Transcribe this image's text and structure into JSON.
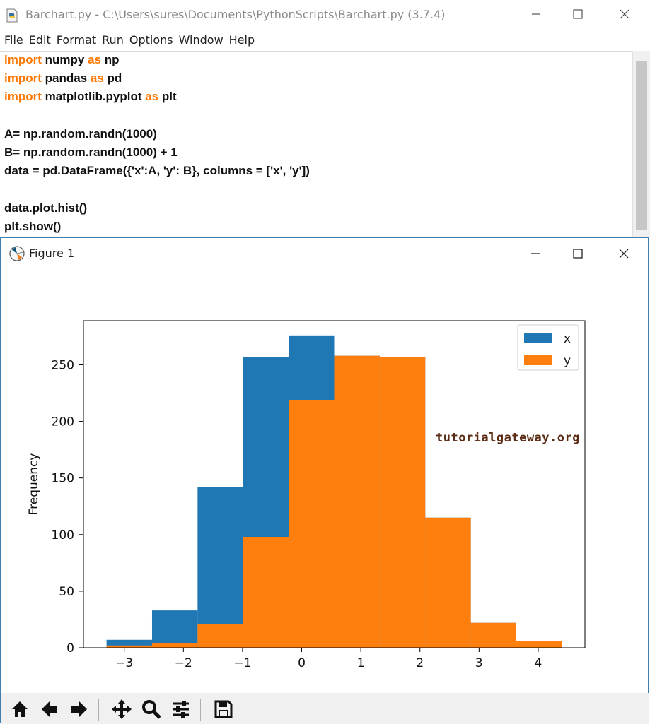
{
  "editor": {
    "title": "Barchart.py - C:\\Users\\sures\\Documents\\PythonScripts\\Barchart.py (3.7.4)",
    "menu": [
      "File",
      "Edit",
      "Format",
      "Run",
      "Options",
      "Window",
      "Help"
    ],
    "code_lines": [
      [
        {
          "t": "import",
          "kw": true
        },
        {
          "t": " numpy "
        },
        {
          "t": "as",
          "kw": true
        },
        {
          "t": " np"
        }
      ],
      [
        {
          "t": "import",
          "kw": true
        },
        {
          "t": " pandas "
        },
        {
          "t": "as",
          "kw": true
        },
        {
          "t": " pd"
        }
      ],
      [
        {
          "t": "import",
          "kw": true
        },
        {
          "t": " matplotlib.pyplot "
        },
        {
          "t": "as",
          "kw": true
        },
        {
          "t": " plt"
        }
      ],
      [],
      [
        {
          "t": "A= np.random.randn(1000)"
        }
      ],
      [
        {
          "t": "B= np.random.randn(1000) + 1"
        }
      ],
      [
        {
          "t": "data = pd.DataFrame({'x':A, 'y': B}, columns = ['x', 'y'])"
        }
      ],
      [],
      [
        {
          "t": "data.plot.hist()"
        }
      ],
      [
        {
          "t": "plt.show()"
        }
      ]
    ]
  },
  "figure": {
    "title": "Figure 1",
    "watermark": "tutorialgateway.org",
    "toolbar": [
      "home-icon",
      "back-icon",
      "forward-icon",
      "pan-icon",
      "zoom-icon",
      "configure-subplots-icon",
      "save-icon"
    ]
  },
  "colors": {
    "x": "#1f77b4",
    "y": "#ff7f0e",
    "keyword": "#ff7700"
  },
  "chart_data": {
    "type": "bar",
    "title": "",
    "xlabel": "",
    "ylabel": "Frequency",
    "xlim": [
      -3.69,
      4.79
    ],
    "ylim": [
      0,
      289
    ],
    "xticks": [
      -3,
      -2,
      -1,
      0,
      1,
      2,
      3,
      4
    ],
    "yticks": [
      0,
      50,
      100,
      150,
      200,
      250
    ],
    "bin_edges": [
      -3.3,
      -2.53,
      -1.76,
      -0.99,
      -0.22,
      0.55,
      1.32,
      2.09,
      2.86,
      3.63,
      4.4
    ],
    "series": [
      {
        "name": "x",
        "values": [
          7,
          33,
          142,
          257,
          276,
          258,
          257,
          115,
          22,
          6
        ]
      },
      {
        "name": "y",
        "values": [
          2,
          4,
          21,
          98,
          219,
          258,
          257,
          115,
          22,
          6
        ]
      }
    ],
    "legend": [
      "x",
      "y"
    ],
    "legend_position": "top-right",
    "grid": false
  }
}
